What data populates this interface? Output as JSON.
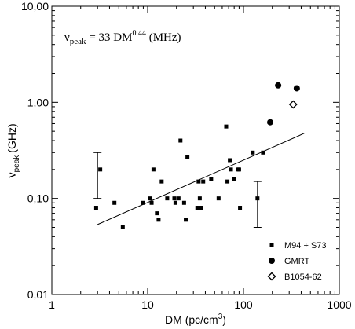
{
  "chart_data": {
    "type": "scatter",
    "x_scale": "log",
    "y_scale": "log",
    "xlim": [
      1,
      1000
    ],
    "ylim": [
      0.01,
      10
    ],
    "x_ticks": [
      {
        "value": 1,
        "label": "1"
      },
      {
        "value": 10,
        "label": "10"
      },
      {
        "value": 100,
        "label": "100"
      },
      {
        "value": 1000,
        "label": "1000"
      }
    ],
    "y_ticks": [
      {
        "value": 0.01,
        "label": "0,01"
      },
      {
        "value": 0.1,
        "label": "0,10"
      },
      {
        "value": 1,
        "label": "1,00"
      },
      {
        "value": 10,
        "label": "10,00"
      }
    ],
    "xlabel": {
      "main": "DM (pc/cm",
      "sup": "3",
      "close": ")"
    },
    "ylabel": {
      "nu": "ν",
      "sub": "peak",
      "unit": "(GHz)"
    },
    "annotation": {
      "nu": "ν",
      "sub": "peak",
      "eq": " = 33 DM",
      "sup": "0.44",
      "unit": " (MHz)"
    },
    "legend_position": "bottom-right",
    "series": [
      {
        "name": "M94 + S73",
        "marker": "square",
        "points": [
          [
            2.9,
            0.08
          ],
          [
            3.2,
            0.2
          ],
          [
            4.5,
            0.09
          ],
          [
            5.5,
            0.05
          ],
          [
            9,
            0.09
          ],
          [
            10.5,
            0.1
          ],
          [
            11,
            0.09
          ],
          [
            11.5,
            0.2
          ],
          [
            12.5,
            0.07
          ],
          [
            13,
            0.06
          ],
          [
            14,
            0.15
          ],
          [
            16,
            0.1
          ],
          [
            19,
            0.1
          ],
          [
            19.5,
            0.09
          ],
          [
            21,
            0.1
          ],
          [
            22,
            0.4
          ],
          [
            24,
            0.09
          ],
          [
            25,
            0.06
          ],
          [
            26,
            0.27
          ],
          [
            33,
            0.08
          ],
          [
            34,
            0.15
          ],
          [
            35,
            0.1
          ],
          [
            36,
            0.08
          ],
          [
            38,
            0.15
          ],
          [
            46,
            0.16
          ],
          [
            55,
            0.1
          ],
          [
            66,
            0.56
          ],
          [
            68,
            0.15
          ],
          [
            72,
            0.25
          ],
          [
            74,
            0.2
          ],
          [
            80,
            0.16
          ],
          [
            87,
            0.2
          ],
          [
            90,
            0.2
          ],
          [
            92,
            0.08
          ],
          [
            125,
            0.3
          ],
          [
            160,
            0.3
          ],
          [
            140,
            0.1
          ]
        ]
      },
      {
        "name": "GMRT",
        "marker": "circle",
        "points": [
          [
            190,
            0.62
          ],
          [
            230,
            1.5
          ],
          [
            360,
            1.4
          ]
        ]
      },
      {
        "name": "B1054-62",
        "marker": "diamond",
        "points": [
          [
            330,
            0.95
          ]
        ]
      }
    ],
    "error_bars": [
      {
        "x": 3.0,
        "y_low": 0.1,
        "y_high": 0.3
      },
      {
        "x": 140,
        "y_low": 0.05,
        "y_high": 0.15
      }
    ],
    "fit_line": {
      "amplitude_mhz": 33,
      "exponent": 0.44,
      "x_from": 3,
      "x_to": 430
    }
  }
}
